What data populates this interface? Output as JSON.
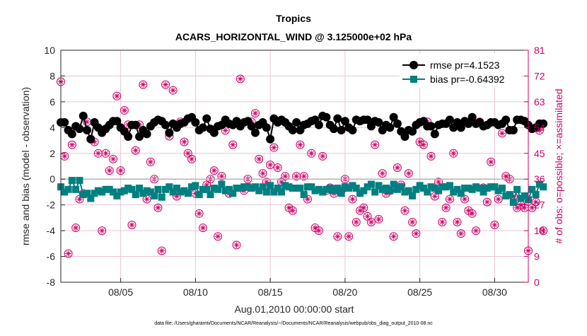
{
  "chart_data": {
    "type": "line",
    "title": "Tropics",
    "subtitle": "ACARS_HORIZONTAL_WIND @ 3.125000e+02 hPa",
    "xlabel": "Aug.01,2010 00:00:00 start",
    "ylabel": "rmse and bias (model - observation)",
    "y2label": "# of obs: o=possible; ×=assimilated",
    "xlim": [
      1,
      32.25
    ],
    "ylim": [
      -8,
      10
    ],
    "y2lim": [
      0,
      81
    ],
    "x_ticks": [
      5,
      10,
      15,
      20,
      25,
      30
    ],
    "x_tick_labels": [
      "08/05",
      "08/10",
      "08/15",
      "08/20",
      "08/25",
      "08/30"
    ],
    "y_ticks": [
      -8,
      -6,
      -4,
      -2,
      0,
      2,
      4,
      6,
      8,
      10
    ],
    "y_tick_labels": [
      "-8",
      "-6",
      "-4",
      "-2",
      "0",
      "2",
      "4",
      "6",
      "8",
      "10"
    ],
    "y2_ticks": [
      0,
      9,
      18,
      27,
      36,
      45,
      54,
      63,
      72,
      81
    ],
    "y2_tick_labels": [
      "0",
      "9",
      "18",
      "27",
      "36",
      "45",
      "54",
      "63",
      "72",
      "81"
    ],
    "grid": true,
    "legend_position": "top-right",
    "series": [
      {
        "name": "rmse pr=4.1523",
        "color": "#000000",
        "marker": "circle",
        "values": [
          4.4,
          4.4,
          3.8,
          3.5,
          4.1,
          3.9,
          4.9,
          3.8,
          3.1,
          4.4,
          4.0,
          3.6,
          3.9,
          4.2,
          4.5,
          4.5,
          4.0,
          3.7,
          3.3,
          4.2,
          4.2,
          3.3,
          3.8,
          3.5,
          4.1,
          4.4,
          4.6,
          4.5,
          4.2,
          3.6,
          4.3,
          4.0,
          4.3,
          4.4,
          4.7,
          4.8,
          4.4,
          3.8,
          4.0,
          4.7,
          3.9,
          3.6,
          4.1,
          4.2,
          4.6,
          4.3,
          4.2,
          4.5,
          4.1,
          4.4,
          4.5,
          4.1,
          3.6,
          4.2,
          4.4,
          4.0,
          3.1,
          4.7,
          4.4,
          4.6,
          4.4,
          4.1,
          3.8,
          4.4,
          3.8,
          4.2,
          4.3,
          4.5,
          4.6,
          4.2,
          4.9,
          4.8,
          4.2,
          3.9,
          4.7,
          3.8,
          4.5,
          4.0,
          3.8,
          4.6,
          4.5,
          4.6,
          4.6,
          4.1,
          4.5,
          4.4,
          3.8,
          4.2,
          4.0,
          4.8,
          4.3,
          3.7,
          3.3,
          3.8,
          3.7,
          4.2,
          4.4,
          4.5,
          4.1,
          4.1,
          3.5,
          4.2,
          4.3,
          4.3,
          4.6,
          4.0,
          4.4,
          4.0,
          4.5,
          4.3,
          4.8,
          4.3,
          4.4,
          4.1,
          4.2,
          4.4,
          4.4,
          4.2,
          4.3,
          4.6,
          3.8,
          3.8,
          4.6,
          4.6,
          4.5,
          4.2,
          3.9,
          4.0,
          4.3,
          4.3
        ]
      },
      {
        "name": "bias pr=-0.64392",
        "color": "#008080",
        "marker": "square",
        "values": [
          -0.6,
          -1.0,
          -0.8,
          -0.1,
          -0.8,
          -0.1,
          -1.2,
          -1.1,
          -1.5,
          -1.1,
          -0.9,
          -1.0,
          -0.8,
          -0.8,
          -1.0,
          -1.3,
          -1.0,
          -0.9,
          -0.7,
          -0.8,
          -1.2,
          -0.7,
          -1.1,
          -0.9,
          -1.0,
          -1.3,
          -0.8,
          -1.4,
          -0.8,
          -0.6,
          -1.0,
          -0.7,
          -1.0,
          -0.9,
          -1.1,
          -0.6,
          -0.5,
          -1.2,
          -0.8,
          -0.8,
          -1.2,
          -0.7,
          -0.8,
          -0.4,
          -0.9,
          -0.8,
          -1.1,
          -0.7,
          -0.7,
          -0.6,
          -0.6,
          -0.7,
          -0.6,
          -0.9,
          -0.6,
          -1.0,
          -0.5,
          -1.0,
          -0.7,
          -1.0,
          -0.5,
          -0.6,
          -0.7,
          -0.7,
          -0.7,
          -1.2,
          -0.6,
          -0.6,
          -0.9,
          -0.8,
          -1.0,
          -0.8,
          -0.7,
          -0.9,
          -0.7,
          -1.1,
          -0.6,
          -0.7,
          -0.5,
          -0.7,
          -1.1,
          -0.9,
          -0.6,
          -0.4,
          -1.0,
          -0.5,
          -0.8,
          -0.7,
          -0.9,
          -0.4,
          -0.8,
          -0.6,
          -1.0,
          -0.9,
          -1.3,
          -0.8,
          -0.5,
          -0.7,
          -1.0,
          -0.6,
          -0.7,
          -0.9,
          -0.6,
          -0.6,
          -0.5,
          -1.0,
          -0.8,
          -1.1,
          -0.7,
          -0.7,
          -0.8,
          -0.6,
          -0.7,
          -1.0,
          -0.7,
          -0.6,
          -0.6,
          -0.9,
          -0.7,
          -1.3,
          -1.2,
          -1.8,
          -0.8,
          -1.5,
          -1.3,
          -1.6,
          -0.8,
          -1.2,
          -0.4,
          -0.6
        ]
      },
      {
        "name": "possible",
        "color": "#cc0066",
        "marker": "open-circle",
        "values": [
          70,
          44,
          10,
          48,
          19,
          29,
          31,
          56,
          50,
          49,
          45,
          18,
          45,
          39,
          43,
          65,
          39,
          60,
          55,
          20,
          46,
          55,
          69,
          29,
          42,
          36,
          26,
          11,
          69,
          51,
          67,
          30,
          56,
          49,
          45,
          43,
          31,
          24,
          19,
          34,
          36,
          39,
          16,
          37,
          53,
          31,
          48,
          13,
          71,
          32,
          36,
          56,
          59,
          43,
          38,
          35,
          41,
          47,
          40,
          35,
          37,
          26,
          25,
          37,
          48,
          37,
          29,
          45,
          19,
          18,
          44,
          32,
          33,
          31,
          16,
          32,
          36,
          16,
          29,
          21,
          25,
          26,
          23,
          21,
          48,
          22,
          38,
          31,
          32,
          16,
          40,
          34,
          25,
          38,
          21,
          17,
          49,
          48,
          56,
          44,
          30,
          35,
          21,
          26,
          29,
          45,
          21,
          17,
          29,
          25,
          24,
          18,
          56,
          33,
          28,
          42,
          20,
          29,
          52,
          37,
          36,
          30,
          26,
          27,
          26,
          11,
          26,
          28,
          53,
          18
        ]
      },
      {
        "name": "assimilated",
        "color": "#cc0066",
        "marker": "star",
        "values": [
          70,
          44,
          10,
          48,
          19,
          29,
          31,
          56,
          50,
          49,
          45,
          18,
          45,
          39,
          43,
          65,
          39,
          60,
          55,
          20,
          46,
          55,
          69,
          29,
          42,
          36,
          26,
          11,
          69,
          51,
          67,
          30,
          56,
          49,
          45,
          43,
          31,
          24,
          19,
          34,
          36,
          39,
          16,
          37,
          53,
          31,
          48,
          13,
          71,
          32,
          36,
          56,
          59,
          43,
          38,
          35,
          41,
          47,
          40,
          35,
          37,
          26,
          25,
          37,
          48,
          37,
          29,
          45,
          19,
          18,
          44,
          32,
          33,
          31,
          16,
          32,
          36,
          16,
          29,
          21,
          25,
          26,
          23,
          21,
          48,
          22,
          38,
          31,
          32,
          16,
          40,
          34,
          25,
          38,
          21,
          17,
          49,
          48,
          56,
          44,
          30,
          35,
          21,
          26,
          29,
          45,
          21,
          17,
          29,
          25,
          24,
          18,
          56,
          33,
          28,
          42,
          20,
          29,
          52,
          37,
          36,
          30,
          26,
          27,
          26,
          11,
          26,
          28,
          53,
          18
        ]
      }
    ],
    "legend": [
      {
        "label": "rmse pr=4.1523",
        "color": "#000000",
        "marker": "circle"
      },
      {
        "label": "bias pr=-0.64392",
        "color": "#008080",
        "marker": "square"
      }
    ]
  },
  "footer": "data file: /Users/gharamti/Documents/NCAR/Reanalysis/~/Documents/NCAR/Reanalysis/webpub/obs_diag_output_2010-08.nc"
}
